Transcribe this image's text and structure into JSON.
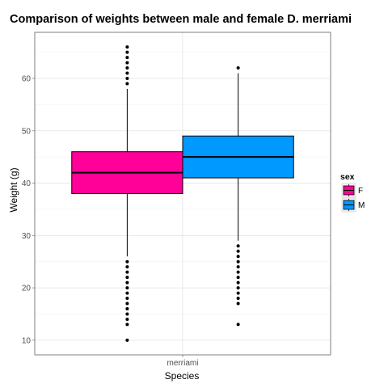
{
  "chart_data": {
    "type": "boxplot",
    "title": "Comparison of weights between male and female D. merriami",
    "xlabel": "Species",
    "ylabel": "Weight (g)",
    "categories": [
      "merriami"
    ],
    "ylim": [
      7.2,
      68.8
    ],
    "yticks": [
      10,
      20,
      30,
      40,
      50,
      60
    ],
    "grid": true,
    "legend": {
      "title": "sex",
      "position": "right"
    },
    "series": [
      {
        "name": "F",
        "color": "#FF0099",
        "q1": 38,
        "median": 42,
        "q3": 46,
        "whisker_low": 26,
        "whisker_high": 58,
        "outliers": [
          10,
          13,
          14,
          15,
          16,
          17,
          18,
          19,
          20,
          21,
          22,
          23,
          24,
          25,
          59,
          60,
          61,
          62,
          63,
          64,
          65,
          66
        ]
      },
      {
        "name": "M",
        "color": "#0099FF",
        "q1": 41,
        "median": 45,
        "q3": 49,
        "whisker_low": 29,
        "whisker_high": 61,
        "outliers": [
          13,
          17,
          18,
          19,
          20,
          21,
          22,
          23,
          24,
          25,
          26,
          27,
          28,
          62
        ]
      }
    ]
  }
}
